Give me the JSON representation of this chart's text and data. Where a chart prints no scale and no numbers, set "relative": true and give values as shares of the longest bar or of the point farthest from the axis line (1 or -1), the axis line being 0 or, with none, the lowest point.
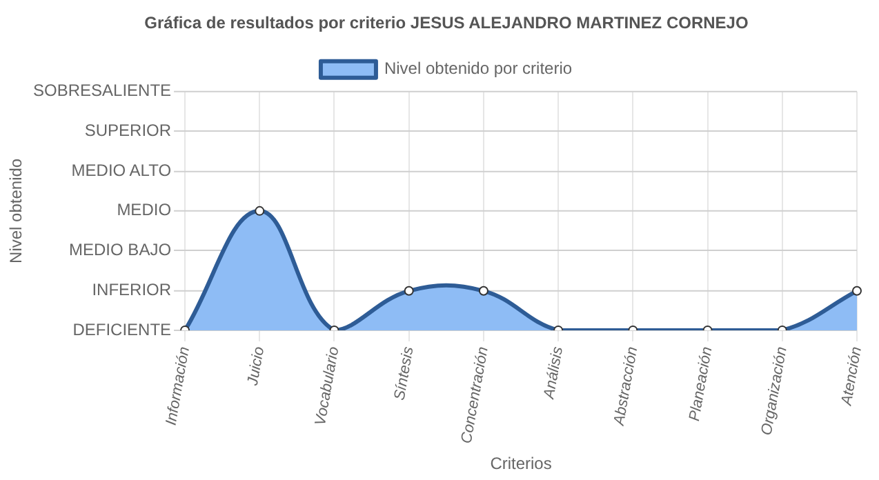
{
  "chart_data": {
    "type": "area",
    "title": "Gráfica de resultados por criterio JESUS ALEJANDRO MARTINEZ CORNEJO",
    "xlabel": "Criterios",
    "annotations": [
      "Nivel obtenido"
    ],
    "categories": [
      "Información",
      "Juicio",
      "Vocabulario",
      "Síntesis",
      "Concentración",
      "Análisis",
      "Abstracción",
      "Planeación",
      "Organización",
      "Atención"
    ],
    "series": [
      {
        "name": "Nivel obtenido por criterio",
        "color": "#2e5c96",
        "values": [
          0,
          1,
          0,
          0.33,
          0.33,
          0,
          0,
          0,
          0,
          0.33
        ]
      }
    ],
    "relative": true,
    "ref_lines": [
      {
        "axis": "y",
        "value": 0,
        "label": "DEFICIENTE"
      },
      {
        "axis": "y",
        "value": 0.33,
        "label": "INFERIOR"
      },
      {
        "axis": "y",
        "value": 0.67,
        "label": "MEDIO BAJO"
      },
      {
        "axis": "y",
        "value": 1,
        "label": "MEDIO"
      },
      {
        "axis": "y",
        "value": 1.33,
        "label": "MEDIO ALTO"
      },
      {
        "axis": "y",
        "value": 1.67,
        "label": "SUPERIOR"
      },
      {
        "axis": "y",
        "value": 2,
        "label": "SOBRESALIENTE"
      }
    ],
    "grid": "x",
    "legend": "top",
    "marker": "circle",
    "line_style": "solid"
  }
}
